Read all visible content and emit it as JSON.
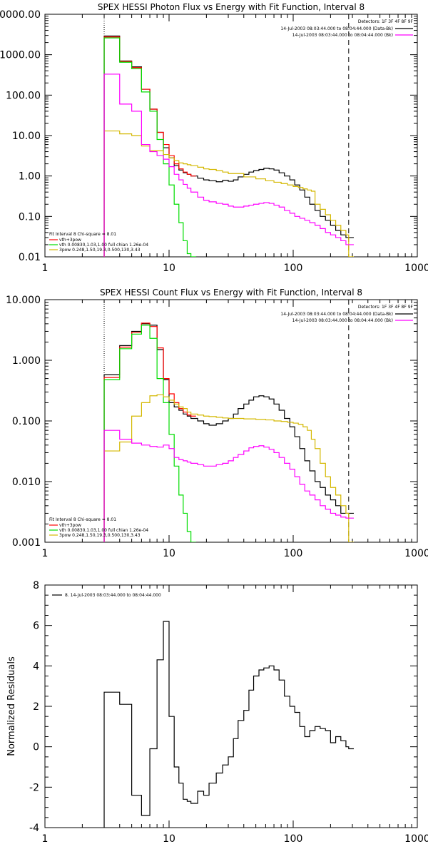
{
  "colors": {
    "data": "#000000",
    "total": "#ff0000",
    "thermal": "#00dd00",
    "powerlaw": "#d4b800",
    "background": "#ff00ff"
  },
  "chart_data": [
    {
      "type": "line",
      "title": "SPEX HESSI Photon Flux vs Energy with Fit Function, Interval 8",
      "xlabel": "",
      "ylabel": "",
      "xscale": "log",
      "yscale": "log",
      "xlim": [
        1,
        1000
      ],
      "ylim": [
        0.01,
        10000
      ],
      "x_tick_labels": [
        "1",
        "10",
        "100",
        "1000"
      ],
      "y_tick_labels": [
        "0.01",
        "0.10",
        "1.00",
        "10.00",
        "100.00",
        "1000.00",
        "10000.00"
      ],
      "vertical_markers": [
        {
          "x": 3,
          "style": "dotted"
        },
        {
          "x": 280,
          "style": "dashed"
        }
      ],
      "legend_topright": {
        "title": "Detectors: 1F 3F 4F 8F 9F",
        "entries": [
          {
            "label": "14-Jul-2003 08:03:44.000 to 08:04:44.000 (Data-Bk)",
            "color": "data"
          },
          {
            "label": "14-Jul-2003 08:03:44.000 to 08:04:44.000 (Bk)",
            "color": "background"
          }
        ]
      },
      "legend_bottomleft": {
        "title": "Fit Interval 8   Chi-square = 8.01",
        "entries": [
          {
            "label": "vth+3pow",
            "color": "total"
          },
          {
            "label": "vth 0.00830,1.03,1.00  full chian 1.26e-04",
            "color": "thermal"
          },
          {
            "label": "3pow 0.248,1.50,19.3,0.500,130,3.43",
            "color": "powerlaw"
          }
        ]
      },
      "series": [
        {
          "name": "Data-Bk",
          "color": "data",
          "x": [
            3,
            4,
            5,
            6,
            7,
            8,
            9,
            10,
            11,
            12,
            13,
            14,
            15,
            17,
            19,
            21,
            24,
            27,
            30,
            33,
            36,
            40,
            44,
            48,
            53,
            58,
            64,
            70,
            77,
            85,
            94,
            103,
            113,
            124,
            136,
            150,
            165,
            182,
            200,
            220,
            242,
            266,
            280
          ],
          "values": [
            2900,
            700,
            500,
            140,
            45,
            12,
            5,
            2.8,
            1.8,
            1.4,
            1.2,
            1.1,
            1.0,
            0.88,
            0.8,
            0.76,
            0.72,
            0.78,
            0.74,
            0.8,
            0.95,
            1.1,
            1.25,
            1.35,
            1.45,
            1.55,
            1.5,
            1.4,
            1.2,
            1.0,
            0.8,
            0.6,
            0.45,
            0.3,
            0.2,
            0.14,
            0.1,
            0.08,
            0.06,
            0.045,
            0.035,
            0.03,
            0.03
          ]
        },
        {
          "name": "vth+3pow",
          "color": "total",
          "x": [
            3,
            4,
            5,
            6,
            7,
            8,
            9,
            10,
            11,
            12,
            13,
            14,
            15
          ],
          "values": [
            2750,
            680,
            480,
            140,
            45,
            12,
            6,
            3.2,
            2.0,
            1.5,
            1.25,
            1.1,
            1.0
          ]
        },
        {
          "name": "vth",
          "color": "thermal",
          "x": [
            3,
            4,
            5,
            6,
            7,
            8,
            9,
            10,
            11,
            12,
            13,
            14,
            15
          ],
          "values": [
            2600,
            650,
            450,
            120,
            40,
            8,
            2,
            0.6,
            0.2,
            0.07,
            0.025,
            0.012,
            0.01
          ]
        },
        {
          "name": "3pow",
          "color": "powerlaw",
          "x": [
            3,
            4,
            5,
            6,
            7,
            8,
            9,
            10,
            11,
            12,
            13,
            14,
            15,
            17,
            19,
            21,
            24,
            27,
            30,
            40,
            50,
            60,
            70,
            80,
            90,
            100,
            110,
            120,
            130,
            140,
            150,
            165,
            182,
            200,
            220,
            242,
            266,
            280
          ],
          "values": [
            13,
            11,
            10,
            5.5,
            4.2,
            4.2,
            3.4,
            2.8,
            2.4,
            2.1,
            2.0,
            1.9,
            1.8,
            1.65,
            1.5,
            1.45,
            1.35,
            1.25,
            1.15,
            0.95,
            0.85,
            0.76,
            0.7,
            0.65,
            0.6,
            0.55,
            0.52,
            0.48,
            0.45,
            0.42,
            0.2,
            0.15,
            0.11,
            0.08,
            0.06,
            0.045,
            0.035,
            0.01
          ]
        },
        {
          "name": "Bk",
          "color": "background",
          "x": [
            3,
            4,
            5,
            6,
            7,
            8,
            9,
            10,
            11,
            12,
            13,
            14,
            15,
            17,
            19,
            21,
            24,
            27,
            30,
            33,
            36,
            40,
            44,
            48,
            53,
            58,
            64,
            70,
            77,
            85,
            94,
            103,
            113,
            124,
            136,
            150,
            165,
            182,
            200,
            220,
            242,
            266,
            280
          ],
          "values": [
            330,
            60,
            40,
            6,
            4,
            3.2,
            2.6,
            1.7,
            1.1,
            0.8,
            0.62,
            0.5,
            0.4,
            0.3,
            0.25,
            0.23,
            0.21,
            0.2,
            0.18,
            0.17,
            0.17,
            0.18,
            0.19,
            0.2,
            0.21,
            0.22,
            0.21,
            0.19,
            0.17,
            0.14,
            0.12,
            0.1,
            0.09,
            0.08,
            0.07,
            0.06,
            0.05,
            0.04,
            0.035,
            0.03,
            0.025,
            0.02,
            0.02
          ]
        }
      ]
    },
    {
      "type": "line",
      "title": "SPEX HESSI Count Flux vs Energy with Fit Function, Interval 8",
      "xlabel": "",
      "ylabel": "",
      "xscale": "log",
      "yscale": "log",
      "xlim": [
        1,
        1000
      ],
      "ylim": [
        0.001,
        10
      ],
      "x_tick_labels": [
        "1",
        "10",
        "100",
        "1000"
      ],
      "y_tick_labels": [
        "0.001",
        "0.010",
        "0.100",
        "1.000",
        "10.000"
      ],
      "vertical_markers": [
        {
          "x": 3,
          "style": "dotted"
        },
        {
          "x": 280,
          "style": "dashed"
        }
      ],
      "legend_topright": {
        "title": "Detectors: 1F 3F 4F 8F 9F",
        "entries": [
          {
            "label": "14-Jul-2003 08:03:44.000 to 08:04:44.000 (Data-Bk)",
            "color": "data"
          },
          {
            "label": "14-Jul-2003 08:03:44.000 to 08:04:44.000 (Bk)",
            "color": "background"
          }
        ]
      },
      "legend_bottomleft": {
        "title": "Fit Interval 8   Chi-square = 8.01",
        "entries": [
          {
            "label": "vth+3pow",
            "color": "total"
          },
          {
            "label": "vth 0.00830,1.03,1.00  full chian 1.26e-04",
            "color": "thermal"
          },
          {
            "label": "3pow 0.248,1.50,19.3,0.500,130,3.43",
            "color": "powerlaw"
          }
        ]
      },
      "series": [
        {
          "name": "Data-Bk",
          "color": "data",
          "x": [
            3,
            4,
            5,
            6,
            7,
            8,
            9,
            10,
            11,
            12,
            13,
            14,
            15,
            17,
            19,
            21,
            24,
            27,
            30,
            33,
            36,
            40,
            44,
            48,
            53,
            58,
            64,
            70,
            77,
            85,
            94,
            103,
            113,
            124,
            136,
            150,
            165,
            182,
            200,
            220,
            242,
            266,
            280
          ],
          "values": [
            0.58,
            1.75,
            3.0,
            4.0,
            3.8,
            1.5,
            0.48,
            0.2,
            0.17,
            0.15,
            0.13,
            0.12,
            0.11,
            0.1,
            0.09,
            0.085,
            0.09,
            0.1,
            0.11,
            0.13,
            0.16,
            0.19,
            0.22,
            0.25,
            0.26,
            0.25,
            0.23,
            0.19,
            0.15,
            0.11,
            0.08,
            0.055,
            0.035,
            0.022,
            0.015,
            0.01,
            0.008,
            0.006,
            0.005,
            0.004,
            0.003,
            0.003,
            0.003
          ]
        },
        {
          "name": "vth+3pow",
          "color": "total",
          "x": [
            3,
            4,
            5,
            6,
            7,
            8,
            9,
            10,
            11,
            12,
            13,
            14,
            15
          ],
          "values": [
            0.52,
            1.65,
            2.9,
            4.1,
            3.6,
            1.6,
            0.5,
            0.28,
            0.2,
            0.16,
            0.14,
            0.125,
            0.12
          ]
        },
        {
          "name": "vth",
          "color": "thermal",
          "x": [
            3,
            4,
            5,
            6,
            7,
            8,
            9,
            10,
            11,
            12,
            13,
            14,
            15
          ],
          "values": [
            0.48,
            1.55,
            2.7,
            3.8,
            2.3,
            0.5,
            0.2,
            0.06,
            0.018,
            0.006,
            0.003,
            0.0015,
            0.001
          ]
        },
        {
          "name": "3pow",
          "color": "powerlaw",
          "x": [
            3,
            4,
            5,
            6,
            7,
            8,
            9,
            10,
            11,
            12,
            13,
            14,
            15,
            17,
            19,
            21,
            24,
            27,
            30,
            40,
            50,
            60,
            70,
            80,
            90,
            100,
            110,
            120,
            130,
            140,
            150,
            165,
            182,
            200,
            220,
            242,
            266,
            280
          ],
          "values": [
            0.032,
            0.045,
            0.12,
            0.2,
            0.26,
            0.27,
            0.25,
            0.22,
            0.19,
            0.17,
            0.16,
            0.14,
            0.13,
            0.125,
            0.12,
            0.118,
            0.115,
            0.112,
            0.11,
            0.108,
            0.106,
            0.104,
            0.1,
            0.098,
            0.095,
            0.092,
            0.088,
            0.08,
            0.07,
            0.05,
            0.035,
            0.02,
            0.012,
            0.008,
            0.006,
            0.004,
            0.003,
            0.001
          ]
        },
        {
          "name": "Bk",
          "color": "background",
          "x": [
            3,
            4,
            5,
            6,
            7,
            8,
            9,
            10,
            11,
            12,
            13,
            14,
            15,
            17,
            19,
            21,
            24,
            27,
            30,
            33,
            36,
            40,
            44,
            48,
            53,
            58,
            64,
            70,
            77,
            85,
            94,
            103,
            113,
            124,
            136,
            150,
            165,
            182,
            200,
            220,
            242,
            266,
            280
          ],
          "values": [
            0.07,
            0.05,
            0.043,
            0.04,
            0.038,
            0.037,
            0.04,
            0.035,
            0.025,
            0.023,
            0.022,
            0.021,
            0.02,
            0.019,
            0.018,
            0.018,
            0.019,
            0.02,
            0.022,
            0.025,
            0.028,
            0.032,
            0.036,
            0.038,
            0.039,
            0.037,
            0.034,
            0.03,
            0.025,
            0.02,
            0.016,
            0.012,
            0.009,
            0.007,
            0.006,
            0.005,
            0.004,
            0.0035,
            0.003,
            0.0028,
            0.0026,
            0.0025,
            0.0025
          ]
        }
      ]
    },
    {
      "type": "line",
      "title": "",
      "xlabel": "",
      "ylabel": "Normalized Residuals",
      "xscale": "log",
      "yscale": "linear",
      "xlim": [
        1,
        1000
      ],
      "ylim": [
        -4,
        8
      ],
      "x_tick_labels": [
        "1",
        "10",
        "100",
        "1000"
      ],
      "y_tick_labels": [
        "-4",
        "-2",
        "0",
        "2",
        "4",
        "6",
        "8"
      ],
      "legend_topleft": {
        "entries": [
          {
            "label": "8. 14-Jul-2003 08:03:44.000 to 08:04:44.000",
            "color": "data"
          }
        ]
      },
      "series": [
        {
          "name": "",
          "color": "data",
          "x": [
            3,
            4,
            5,
            6,
            7,
            8,
            9,
            10,
            11,
            12,
            13,
            14,
            15,
            17,
            19,
            21,
            24,
            27,
            30,
            33,
            36,
            40,
            44,
            48,
            53,
            58,
            64,
            70,
            77,
            85,
            94,
            103,
            113,
            124,
            136,
            150,
            165,
            182,
            200,
            220,
            242,
            266,
            280
          ],
          "values": [
            2.7,
            2.1,
            -2.4,
            -3.4,
            -0.1,
            4.3,
            6.2,
            1.5,
            -1.0,
            -1.8,
            -2.6,
            -2.7,
            -2.8,
            -2.2,
            -2.4,
            -1.8,
            -1.3,
            -0.9,
            -0.5,
            0.4,
            1.3,
            1.8,
            2.8,
            3.5,
            3.8,
            3.9,
            4.0,
            3.8,
            3.3,
            2.5,
            2.0,
            1.7,
            1.0,
            0.5,
            0.8,
            1.0,
            0.9,
            0.8,
            0.2,
            0.5,
            0.3,
            0.0,
            -0.1
          ]
        }
      ]
    }
  ]
}
